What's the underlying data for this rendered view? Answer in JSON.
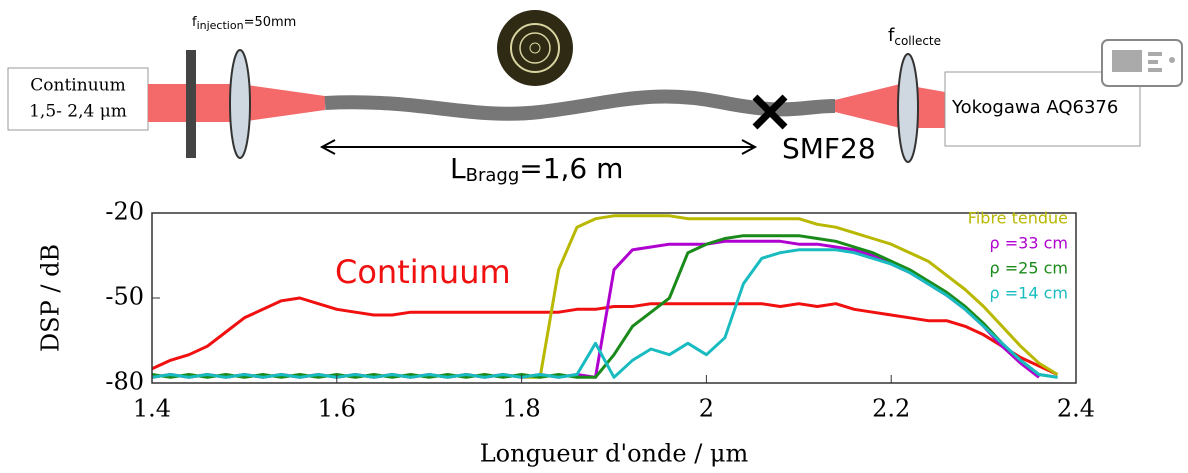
{
  "diagram": {
    "source_title": "Continuum",
    "source_range": "1,5- 2,4 μm",
    "injection_f": "f",
    "injection_sub": "injection",
    "injection_rest": "=50mm",
    "length_L": "L",
    "length_sub": "Bragg",
    "length_rest": "=1,6 m",
    "fiber": "SMF28",
    "collect_f": "f",
    "collect_sub": "collecte",
    "analyzer": "Yokogawa AQ6376"
  },
  "chart_data": {
    "type": "line",
    "xlabel": "Longueur d'onde / μm",
    "ylabel": "DSP / dB",
    "xlim": [
      1.4,
      2.4
    ],
    "ylim": [
      -80,
      -20
    ],
    "xticks": [
      1.4,
      1.6,
      1.8,
      2,
      2.2,
      2.4
    ],
    "yticks": [
      -80,
      -50,
      -20
    ],
    "x": [
      1.4,
      1.42,
      1.44,
      1.46,
      1.48,
      1.5,
      1.52,
      1.54,
      1.56,
      1.58,
      1.6,
      1.62,
      1.64,
      1.66,
      1.68,
      1.7,
      1.72,
      1.74,
      1.76,
      1.78,
      1.8,
      1.82,
      1.84,
      1.86,
      1.88,
      1.9,
      1.92,
      1.94,
      1.96,
      1.98,
      2,
      2.02,
      2.04,
      2.06,
      2.08,
      2.1,
      2.12,
      2.14,
      2.16,
      2.18,
      2.2,
      2.22,
      2.24,
      2.26,
      2.28,
      2.3,
      2.32,
      2.34,
      2.36,
      2.38,
      2.4
    ],
    "series": [
      {
        "name": "Continuum",
        "color": "#f01010",
        "values": [
          -75,
          -72,
          -70,
          -67,
          -62,
          -57,
          -54,
          -51,
          -50,
          -52,
          -54,
          -55,
          -56,
          -56,
          -55,
          -55,
          -55,
          -55,
          -55,
          -55,
          -55,
          -55,
          -55,
          -54,
          -54,
          -53,
          -53,
          -52,
          -52,
          -52,
          -52,
          -52,
          -52,
          -52,
          -53,
          -52,
          -53,
          -52,
          -54,
          -55,
          -56,
          -57,
          -58,
          -58,
          -60,
          -63,
          -67,
          -71,
          -74,
          -77,
          null
        ]
      },
      {
        "name": "Fibre tendue",
        "color": "#b8b800",
        "values": [
          -78,
          -77,
          -78,
          -77,
          -78,
          -77,
          -78,
          -77,
          -78,
          -77,
          -78,
          -77,
          -78,
          -77,
          -78,
          -77,
          -78,
          -77,
          -78,
          -77,
          -78,
          -78,
          -40,
          -25,
          -22,
          -21,
          -21,
          -21,
          -21,
          -22,
          -22,
          -22,
          -22,
          -22,
          -22,
          -22,
          -24,
          -25,
          -27,
          -29,
          -31,
          -34,
          -37,
          -42,
          -47,
          -53,
          -60,
          -67,
          -73,
          -77,
          null
        ]
      },
      {
        "name": "ρ =33 cm",
        "color": "#b000d0",
        "values": [
          -78,
          -77,
          -78,
          -77,
          -78,
          -77,
          -78,
          -77,
          -78,
          -77,
          -78,
          -77,
          -78,
          -77,
          -78,
          -77,
          -78,
          -77,
          -78,
          -77,
          -78,
          -77,
          -78,
          -77,
          -78,
          -40,
          -33,
          -32,
          -31,
          -31,
          -31,
          -30,
          -30,
          -30,
          -30,
          -31,
          -31,
          -32,
          -33,
          -35,
          -38,
          -41,
          -45,
          -49,
          -54,
          -60,
          -67,
          -73,
          -78,
          null,
          null
        ]
      },
      {
        "name": "ρ =25 cm",
        "color": "#1a8a1a",
        "values": [
          -77,
          -78,
          -77,
          -78,
          -77,
          -78,
          -77,
          -78,
          -77,
          -78,
          -77,
          -78,
          -77,
          -78,
          -77,
          -78,
          -77,
          -78,
          -77,
          -78,
          -77,
          -78,
          -77,
          -78,
          -78,
          -70,
          -60,
          -55,
          -50,
          -34,
          -31,
          -29,
          -28,
          -28,
          -28,
          -28,
          -29,
          -30,
          -32,
          -34,
          -37,
          -40,
          -44,
          -48,
          -53,
          -59,
          -66,
          -72,
          -77,
          -78,
          null
        ]
      },
      {
        "name": "ρ =14 cm",
        "color": "#18bcc0",
        "values": [
          -78,
          -77,
          -78,
          -77,
          -78,
          -77,
          -78,
          -77,
          -78,
          -77,
          -78,
          -77,
          -78,
          -77,
          -78,
          -77,
          -78,
          -77,
          -78,
          -77,
          -78,
          -77,
          -78,
          -77,
          -66,
          -78,
          -72,
          -68,
          -70,
          -66,
          -70,
          -64,
          -45,
          -36,
          -34,
          -33,
          -33,
          -33,
          -34,
          -36,
          -38,
          -41,
          -45,
          -49,
          -54,
          -60,
          -66,
          -72,
          -77,
          -78,
          null
        ]
      }
    ]
  }
}
